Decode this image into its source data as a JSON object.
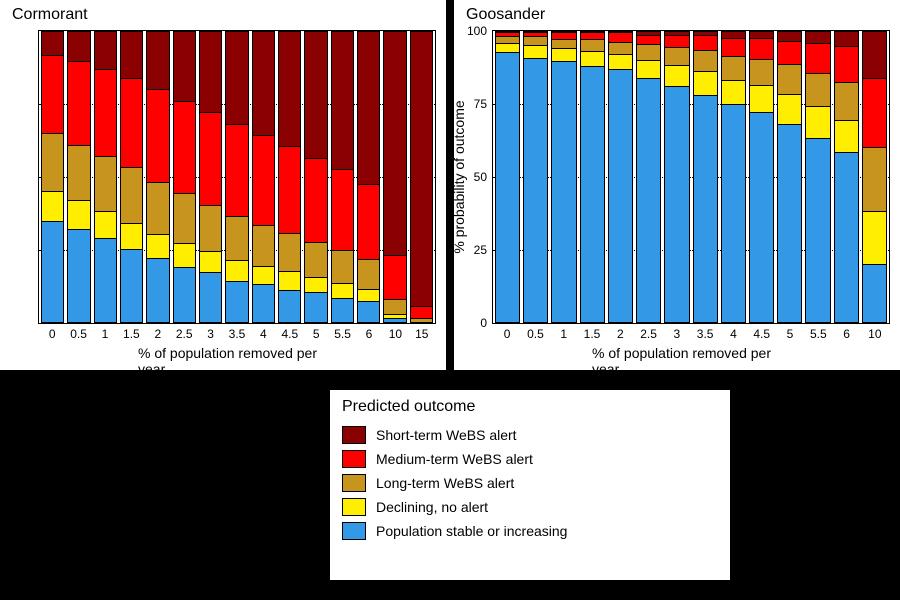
{
  "colors": {
    "short": "#8b0000",
    "medium": "#ff0000",
    "long": "#c7941e",
    "decl": "#ffee00",
    "stable": "#3399e6",
    "border": "#000000",
    "grid": "#000000",
    "bg": "#ffffff"
  },
  "xlabel": "% of population removed per year",
  "ylabel": "% probability of outcome",
  "legend": {
    "title": "Predicted outcome",
    "items": [
      {
        "key": "short",
        "label": "Short-term WeBS alert"
      },
      {
        "key": "medium",
        "label": "Medium-term WeBS alert"
      },
      {
        "key": "long",
        "label": "Long-term WeBS alert"
      },
      {
        "key": "decl",
        "label": "Declining, no alert"
      },
      {
        "key": "stable",
        "label": "Population stable or increasing"
      }
    ]
  },
  "charts": [
    {
      "title": "Cormorant",
      "show_ylabel": false,
      "yticks": [],
      "gridlines": [
        25,
        50,
        75
      ],
      "categories": [
        "0",
        "0.5",
        "1",
        "1.5",
        "2",
        "2.5",
        "3",
        "3.5",
        "4",
        "4.5",
        "5",
        "5.5",
        "6",
        "10",
        "15"
      ],
      "series_order": [
        "short",
        "medium",
        "long",
        "decl",
        "stable"
      ],
      "stacks": [
        [
          8,
          27,
          20,
          10,
          35
        ],
        [
          10,
          29,
          19,
          10,
          32
        ],
        [
          13,
          30,
          19,
          9,
          29
        ],
        [
          16,
          31,
          19,
          9,
          25
        ],
        [
          20,
          32,
          18,
          8,
          22
        ],
        [
          24,
          32,
          17,
          8,
          19
        ],
        [
          28,
          32,
          16,
          7,
          17
        ],
        [
          32,
          32,
          15,
          7,
          14
        ],
        [
          36,
          31,
          14,
          6,
          13
        ],
        [
          40,
          30,
          13,
          6,
          11
        ],
        [
          44,
          29,
          12,
          5,
          10
        ],
        [
          48,
          28,
          11,
          5,
          8
        ],
        [
          53,
          26,
          10,
          4,
          7
        ],
        [
          78,
          15,
          5,
          1,
          1
        ],
        [
          95,
          4,
          1,
          0,
          0
        ]
      ]
    },
    {
      "title": "Goosander",
      "show_ylabel": true,
      "yticks": [
        0,
        25,
        50,
        75,
        100
      ],
      "gridlines": [
        25,
        50,
        75
      ],
      "categories": [
        "0",
        "0.5",
        "1",
        "1.5",
        "2",
        "2.5",
        "3",
        "3.5",
        "4",
        "4.5",
        "5",
        "5.5",
        "6",
        "10"
      ],
      "series_order": [
        "short",
        "medium",
        "long",
        "decl",
        "stable"
      ],
      "stacks": [
        [
          0,
          1,
          2,
          3,
          94
        ],
        [
          0,
          1,
          3,
          4,
          92
        ],
        [
          0,
          2,
          3,
          4,
          91
        ],
        [
          0,
          2,
          4,
          5,
          89
        ],
        [
          0,
          3,
          4,
          5,
          88
        ],
        [
          1,
          3,
          5,
          6,
          85
        ],
        [
          1,
          4,
          6,
          7,
          82
        ],
        [
          1,
          5,
          7,
          8,
          79
        ],
        [
          2,
          6,
          8,
          8,
          76
        ],
        [
          2,
          7,
          9,
          9,
          73
        ],
        [
          3,
          8,
          10,
          10,
          69
        ],
        [
          4,
          10,
          11,
          11,
          64
        ],
        [
          5,
          12,
          13,
          11,
          59
        ],
        [
          16,
          24,
          22,
          18,
          20
        ]
      ]
    }
  ]
}
